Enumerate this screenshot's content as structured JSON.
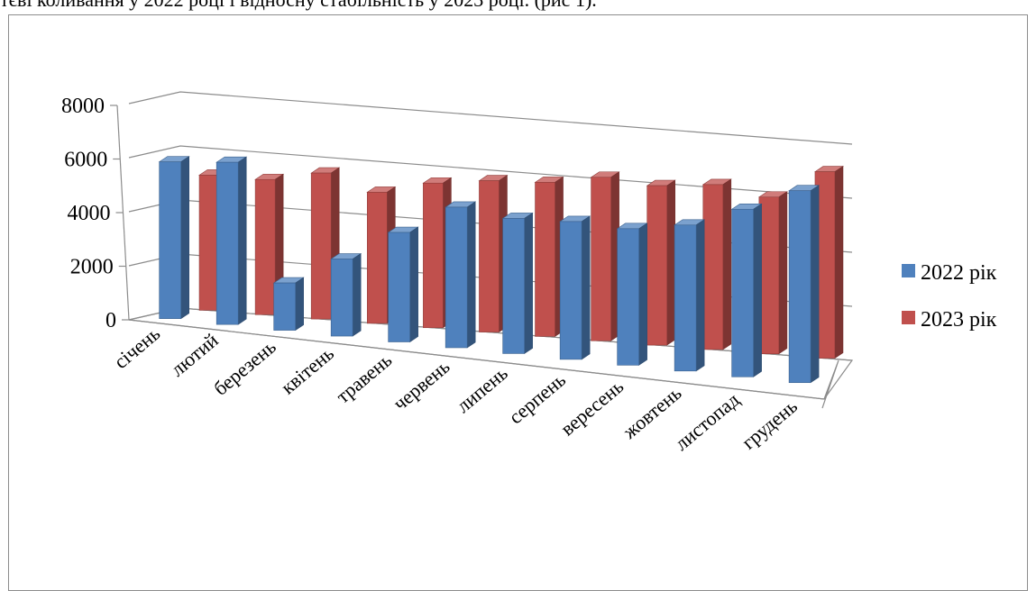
{
  "document": {
    "caption_fragment": "тєві коливання у 2022 році і відносну стабільність у 2023 році. (рис 1)."
  },
  "chart_data": {
    "type": "bar",
    "style": "3d-clustered-column",
    "categories": [
      "січень",
      "лютий",
      "березень",
      "квітень",
      "травень",
      "червень",
      "липень",
      "серпень",
      "вересень",
      "жовтень",
      "листопад",
      "грудень"
    ],
    "series": [
      {
        "name": "2022 рік",
        "color": "#4f81bd",
        "values": [
          5800,
          6000,
          1750,
          2850,
          4050,
          5200,
          5000,
          5100,
          5050,
          5400,
          6200,
          7100
        ]
      },
      {
        "name": "2023 рік",
        "color": "#c0504d",
        "values": [
          5000,
          5000,
          5400,
          4850,
          5350,
          5600,
          5700,
          6050,
          5900,
          6100,
          5800,
          6900
        ]
      }
    ],
    "yticks": [
      0,
      2000,
      4000,
      6000,
      8000
    ],
    "ylim": [
      0,
      8000
    ],
    "xlabel": "",
    "ylabel": "",
    "grid": true,
    "legend": "right"
  }
}
